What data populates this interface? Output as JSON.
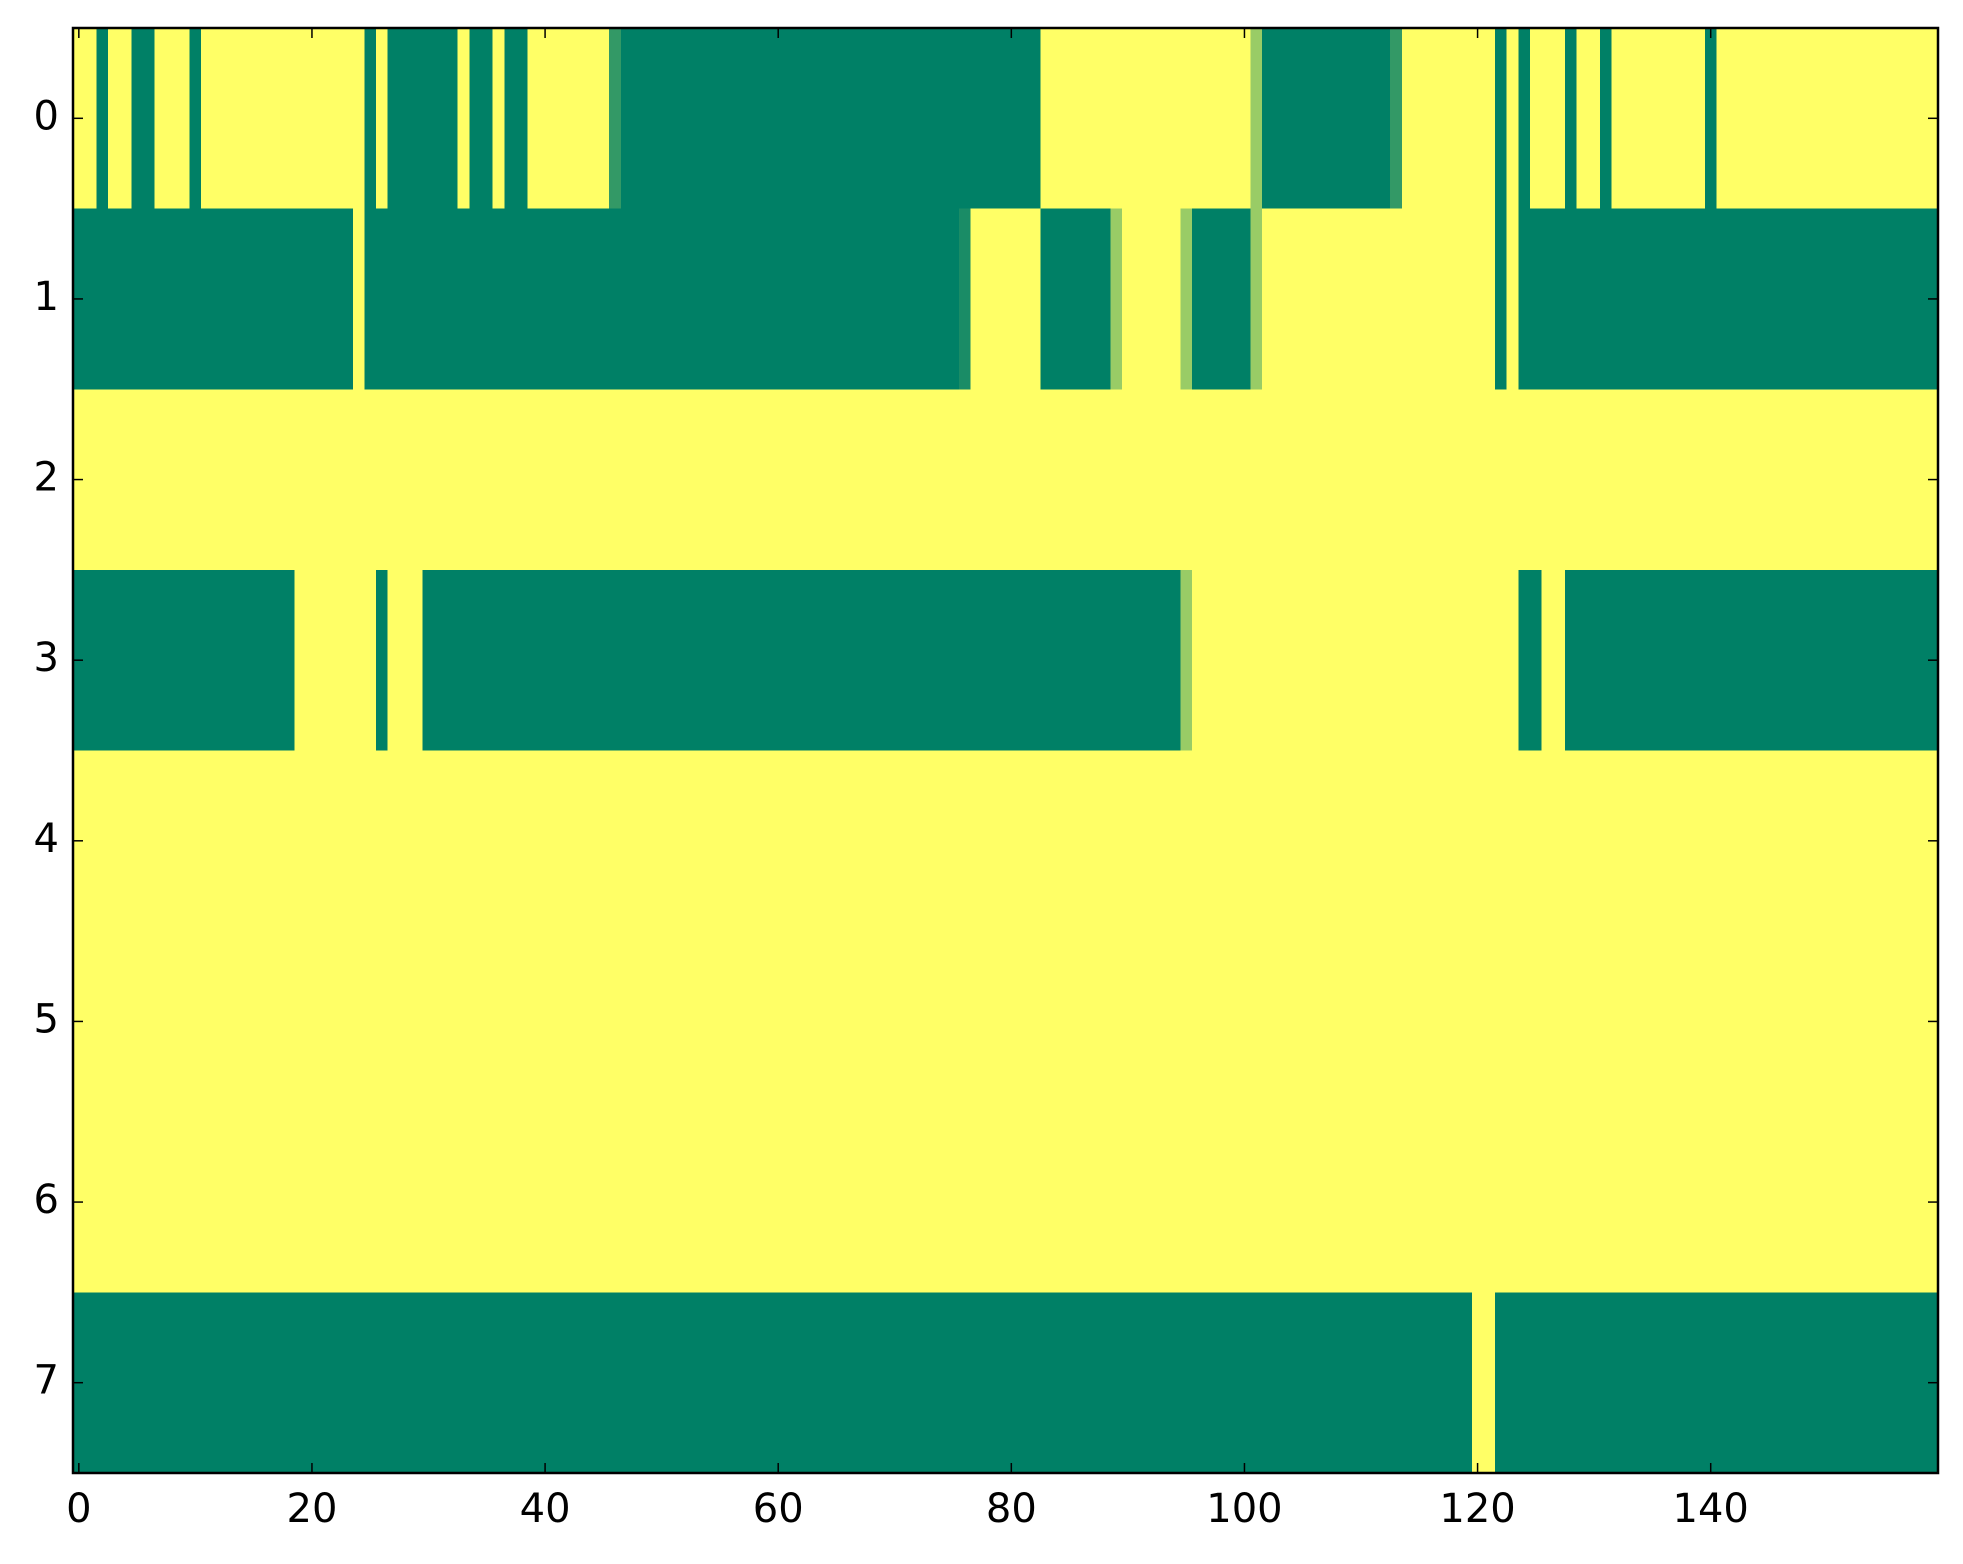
{
  "chart_data": {
    "type": "heatmap",
    "colormap": "summer",
    "clim": [
      0,
      1
    ],
    "xlim": [
      -0.5,
      159.5
    ],
    "ylim": [
      7.5,
      -0.5
    ],
    "xticks": [
      0,
      20,
      40,
      60,
      80,
      100,
      120,
      140
    ],
    "yticks": [
      0,
      1,
      2,
      3,
      4,
      5,
      6,
      7
    ],
    "z": [
      [
        1,
        1,
        0,
        1,
        1,
        0,
        0,
        1,
        1,
        1,
        0,
        1,
        1,
        1,
        1,
        1,
        1,
        1,
        1,
        1,
        1,
        1,
        1,
        1,
        1,
        0,
        1,
        0,
        0,
        0,
        0,
        0,
        0,
        1,
        0,
        0,
        1,
        0,
        0,
        1,
        1,
        1,
        1,
        1,
        1,
        1,
        0.2,
        0,
        0,
        0,
        0,
        0,
        0,
        0,
        0,
        0,
        0,
        0,
        0,
        0,
        0,
        0,
        0,
        0,
        0,
        0,
        0,
        0,
        0,
        0,
        0,
        0,
        0,
        0,
        0,
        0,
        0,
        0,
        0,
        0,
        0,
        0,
        0,
        1,
        1,
        1,
        1,
        1,
        1,
        1,
        1,
        1,
        1,
        1,
        1,
        1,
        1,
        1,
        1,
        1,
        1,
        0.6,
        0,
        0,
        0,
        0,
        0,
        0,
        0,
        0,
        0,
        0,
        0,
        0.2,
        1,
        1,
        1,
        1,
        1,
        1,
        1,
        1,
        0,
        1,
        0,
        1,
        1,
        1,
        0,
        1,
        1,
        0,
        1,
        1,
        1,
        1,
        1,
        1,
        1,
        1,
        0,
        1,
        1,
        1,
        1,
        1,
        1,
        1,
        1,
        1,
        1,
        1,
        1,
        1,
        1,
        1,
        1,
        1,
        1,
        1
      ],
      [
        0,
        0,
        0,
        0,
        0,
        0,
        0,
        0,
        0,
        0,
        0,
        0,
        0,
        0,
        0,
        0,
        0,
        0,
        0,
        0,
        0,
        0,
        0,
        0,
        1,
        0,
        0,
        0,
        0,
        0,
        0,
        0,
        0,
        0,
        0,
        0,
        0,
        0,
        0,
        0,
        0,
        0,
        0,
        0,
        0,
        0,
        0,
        0,
        0,
        0,
        0,
        0,
        0,
        0,
        0,
        0,
        0,
        0,
        0,
        0,
        0,
        0,
        0,
        0,
        0,
        0,
        0,
        0,
        0,
        0,
        0,
        0,
        0,
        0,
        0,
        0,
        0.1,
        1,
        1,
        1,
        1,
        1,
        1,
        0,
        0,
        0,
        0,
        0,
        0,
        0.6,
        1,
        1,
        1,
        1,
        1,
        0.6,
        0,
        0,
        0,
        0,
        0,
        0.6,
        1,
        1,
        1,
        1,
        1,
        1,
        1,
        1,
        1,
        1,
        1,
        1,
        1,
        1,
        1,
        1,
        1,
        1,
        1,
        1,
        0,
        1,
        0,
        0,
        0,
        0,
        0,
        0,
        0,
        0,
        0,
        0,
        0,
        0,
        0,
        0,
        0,
        0,
        0,
        0,
        0,
        0,
        0,
        0,
        0,
        0,
        0,
        0,
        0,
        0,
        0,
        0,
        0,
        0,
        0,
        0,
        0,
        0
      ],
      [
        1,
        1,
        1,
        1,
        1,
        1,
        1,
        1,
        1,
        1,
        1,
        1,
        1,
        1,
        1,
        1,
        1,
        1,
        1,
        1,
        1,
        1,
        1,
        1,
        1,
        1,
        1,
        1,
        1,
        1,
        1,
        1,
        1,
        1,
        1,
        1,
        1,
        1,
        1,
        1,
        1,
        1,
        1,
        1,
        1,
        1,
        1,
        1,
        1,
        1,
        1,
        1,
        1,
        1,
        1,
        1,
        1,
        1,
        1,
        1,
        1,
        1,
        1,
        1,
        1,
        1,
        1,
        1,
        1,
        1,
        1,
        1,
        1,
        1,
        1,
        1,
        1,
        1,
        1,
        1,
        1,
        1,
        1,
        1,
        1,
        1,
        1,
        1,
        1,
        1,
        1,
        1,
        1,
        1,
        1,
        1,
        1,
        1,
        1,
        1,
        1,
        1,
        1,
        1,
        1,
        1,
        1,
        1,
        1,
        1,
        1,
        1,
        1,
        1,
        1,
        1,
        1,
        1,
        1,
        1,
        1,
        1,
        1,
        1,
        1,
        1,
        1,
        1,
        1,
        1,
        1,
        1,
        1,
        1,
        1,
        1,
        1,
        1,
        1,
        1,
        1,
        1,
        1,
        1,
        1,
        1,
        1,
        1,
        1,
        1,
        1,
        1,
        1,
        1,
        1,
        1,
        1,
        1,
        1,
        1
      ],
      [
        0,
        0,
        0,
        0,
        0,
        0,
        0,
        0,
        0,
        0,
        0,
        0,
        0,
        0,
        0,
        0,
        0,
        0,
        0,
        1,
        1,
        1,
        1,
        1,
        1,
        1,
        0,
        1,
        1,
        1,
        0,
        0,
        0,
        0,
        0,
        0,
        0,
        0,
        0,
        0,
        0,
        0,
        0,
        0,
        0,
        0,
        0,
        0,
        0,
        0,
        0,
        0,
        0,
        0,
        0,
        0,
        0,
        0,
        0,
        0,
        0,
        0,
        0,
        0,
        0,
        0,
        0,
        0,
        0,
        0,
        0,
        0,
        0,
        0,
        0,
        0,
        0,
        0,
        0,
        0,
        0,
        0,
        0,
        0,
        0,
        0,
        0,
        0,
        0,
        0,
        0,
        0,
        0,
        0,
        0,
        0.6,
        1,
        1,
        1,
        1,
        1,
        1,
        1,
        1,
        1,
        1,
        1,
        1,
        1,
        1,
        1,
        1,
        1,
        1,
        1,
        1,
        1,
        1,
        1,
        1,
        1,
        1,
        1,
        1,
        0,
        0,
        1,
        1,
        0,
        0,
        0,
        0,
        0,
        0,
        0,
        0,
        0,
        0,
        0,
        0,
        0,
        0,
        0,
        0,
        0,
        0,
        0,
        0,
        0,
        0,
        0,
        0,
        0,
        0,
        0,
        0,
        0,
        0,
        0,
        0
      ],
      [
        1,
        1,
        1,
        1,
        1,
        1,
        1,
        1,
        1,
        1,
        1,
        1,
        1,
        1,
        1,
        1,
        1,
        1,
        1,
        1,
        1,
        1,
        1,
        1,
        1,
        1,
        1,
        1,
        1,
        1,
        1,
        1,
        1,
        1,
        1,
        1,
        1,
        1,
        1,
        1,
        1,
        1,
        1,
        1,
        1,
        1,
        1,
        1,
        1,
        1,
        1,
        1,
        1,
        1,
        1,
        1,
        1,
        1,
        1,
        1,
        1,
        1,
        1,
        1,
        1,
        1,
        1,
        1,
        1,
        1,
        1,
        1,
        1,
        1,
        1,
        1,
        1,
        1,
        1,
        1,
        1,
        1,
        1,
        1,
        1,
        1,
        1,
        1,
        1,
        1,
        1,
        1,
        1,
        1,
        1,
        1,
        1,
        1,
        1,
        1,
        1,
        1,
        1,
        1,
        1,
        1,
        1,
        1,
        1,
        1,
        1,
        1,
        1,
        1,
        1,
        1,
        1,
        1,
        1,
        1,
        1,
        1,
        1,
        1,
        1,
        1,
        1,
        1,
        1,
        1,
        1,
        1,
        1,
        1,
        1,
        1,
        1,
        1,
        1,
        1,
        1,
        1,
        1,
        1,
        1,
        1,
        1,
        1,
        1,
        1,
        1,
        1,
        1,
        1,
        1,
        1,
        1,
        1,
        1,
        1
      ],
      [
        1,
        1,
        1,
        1,
        1,
        1,
        1,
        1,
        1,
        1,
        1,
        1,
        1,
        1,
        1,
        1,
        1,
        1,
        1,
        1,
        1,
        1,
        1,
        1,
        1,
        1,
        1,
        1,
        1,
        1,
        1,
        1,
        1,
        1,
        1,
        1,
        1,
        1,
        1,
        1,
        1,
        1,
        1,
        1,
        1,
        1,
        1,
        1,
        1,
        1,
        1,
        1,
        1,
        1,
        1,
        1,
        1,
        1,
        1,
        1,
        1,
        1,
        1,
        1,
        1,
        1,
        1,
        1,
        1,
        1,
        1,
        1,
        1,
        1,
        1,
        1,
        1,
        1,
        1,
        1,
        1,
        1,
        1,
        1,
        1,
        1,
        1,
        1,
        1,
        1,
        1,
        1,
        1,
        1,
        1,
        1,
        1,
        1,
        1,
        1,
        1,
        1,
        1,
        1,
        1,
        1,
        1,
        1,
        1,
        1,
        1,
        1,
        1,
        1,
        1,
        1,
        1,
        1,
        1,
        1,
        1,
        1,
        1,
        1,
        1,
        1,
        1,
        1,
        1,
        1,
        1,
        1,
        1,
        1,
        1,
        1,
        1,
        1,
        1,
        1,
        1,
        1,
        1,
        1,
        1,
        1,
        1,
        1,
        1,
        1,
        1,
        1,
        1,
        1,
        1,
        1,
        1,
        1,
        1,
        1
      ],
      [
        1,
        1,
        1,
        1,
        1,
        1,
        1,
        1,
        1,
        1,
        1,
        1,
        1,
        1,
        1,
        1,
        1,
        1,
        1,
        1,
        1,
        1,
        1,
        1,
        1,
        1,
        1,
        1,
        1,
        1,
        1,
        1,
        1,
        1,
        1,
        1,
        1,
        1,
        1,
        1,
        1,
        1,
        1,
        1,
        1,
        1,
        1,
        1,
        1,
        1,
        1,
        1,
        1,
        1,
        1,
        1,
        1,
        1,
        1,
        1,
        1,
        1,
        1,
        1,
        1,
        1,
        1,
        1,
        1,
        1,
        1,
        1,
        1,
        1,
        1,
        1,
        1,
        1,
        1,
        1,
        1,
        1,
        1,
        1,
        1,
        1,
        1,
        1,
        1,
        1,
        1,
        1,
        1,
        1,
        1,
        1,
        1,
        1,
        1,
        1,
        1,
        1,
        1,
        1,
        1,
        1,
        1,
        1,
        1,
        1,
        1,
        1,
        1,
        1,
        1,
        1,
        1,
        1,
        1,
        1,
        1,
        1,
        1,
        1,
        1,
        1,
        1,
        1,
        1,
        1,
        1,
        1,
        1,
        1,
        1,
        1,
        1,
        1,
        1,
        1,
        1,
        1,
        1,
        1,
        1,
        1,
        1,
        1,
        1,
        1,
        1,
        1,
        1,
        1,
        1,
        1,
        1,
        1,
        1,
        1
      ],
      [
        0,
        0,
        0,
        0,
        0,
        0,
        0,
        0,
        0,
        0,
        0,
        0,
        0,
        0,
        0,
        0,
        0,
        0,
        0,
        0,
        0,
        0,
        0,
        0,
        0,
        0,
        0,
        0,
        0,
        0,
        0,
        0,
        0,
        0,
        0,
        0,
        0,
        0,
        0,
        0,
        0,
        0,
        0,
        0,
        0,
        0,
        0,
        0,
        0,
        0,
        0,
        0,
        0,
        0,
        0,
        0,
        0,
        0,
        0,
        0,
        0,
        0,
        0,
        0,
        0,
        0,
        0,
        0,
        0,
        0,
        0,
        0,
        0,
        0,
        0,
        0,
        0,
        0,
        0,
        0,
        0,
        0,
        0,
        0,
        0,
        0,
        0,
        0,
        0,
        0,
        0,
        0,
        0,
        0,
        0,
        0,
        0,
        0,
        0,
        0,
        0,
        0,
        0,
        0,
        0,
        0,
        0,
        0,
        0,
        0,
        0,
        0,
        0,
        0,
        0,
        0,
        0,
        0,
        0,
        0,
        1,
        1,
        0,
        0,
        0,
        0,
        0,
        0,
        0,
        0,
        0,
        0,
        0,
        0,
        0,
        0,
        0,
        0,
        0,
        0,
        0,
        0,
        0,
        0,
        0,
        0,
        0,
        0,
        0,
        0,
        0,
        0,
        0,
        0,
        0,
        0,
        0,
        0,
        0,
        0
      ]
    ]
  }
}
